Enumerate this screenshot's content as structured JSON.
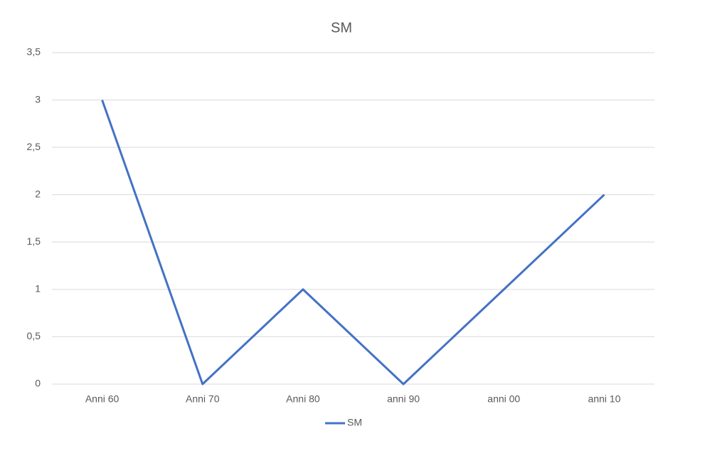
{
  "chart_data": {
    "type": "line",
    "title": "SM",
    "categories": [
      "Anni 60",
      "Anni 70",
      "Anni 80",
      "anni 90",
      "anni 00",
      "anni 10"
    ],
    "series": [
      {
        "name": "SM",
        "color": "#4472c4",
        "values": [
          3,
          0,
          1,
          0,
          1,
          2
        ]
      }
    ],
    "ylim": [
      0,
      3.5
    ],
    "yticks": [
      0,
      {
        "value": 0.5,
        "label": "0,5"
      },
      1,
      {
        "value": 1.5,
        "label": "1,5"
      },
      2,
      {
        "value": 2.5,
        "label": "2,5"
      },
      3,
      {
        "value": 3.5,
        "label": "3,5"
      }
    ],
    "grid": true,
    "legend": "bottom"
  }
}
